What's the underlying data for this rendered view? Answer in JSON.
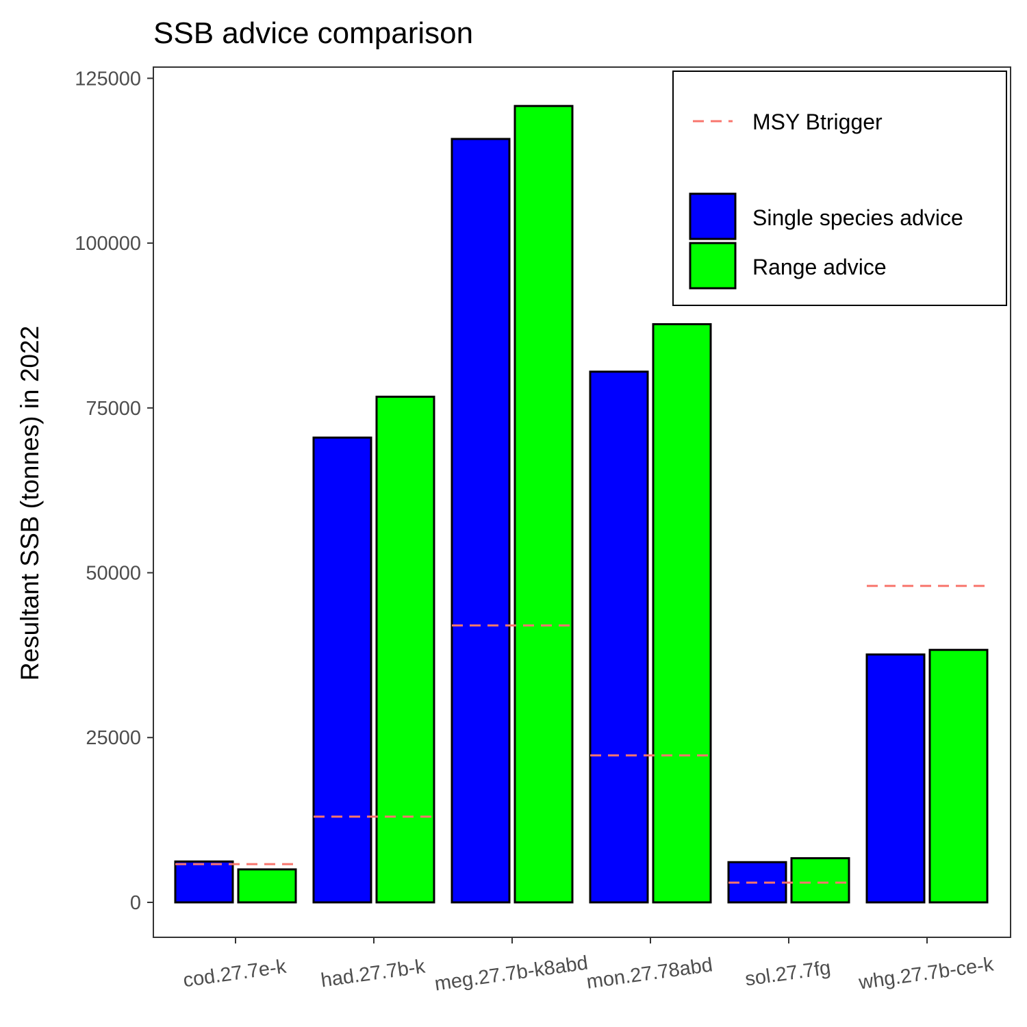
{
  "chart_data": {
    "type": "bar",
    "title": "SSB advice comparison",
    "xlabel": "",
    "ylabel": "Resultant SSB (tonnes) in 2022",
    "ylim": [
      -5300,
      126700
    ],
    "yticks": [
      0,
      25000,
      50000,
      75000,
      100000,
      125000
    ],
    "grid": false,
    "legend_position": "top-right",
    "categories": [
      "cod.27.7e-k",
      "had.27.7b-k",
      "meg.27.7b-k8abd",
      "mon.27.78abd",
      "sol.27.7fg",
      "whg.27.7b-ce-k"
    ],
    "series": [
      {
        "name": "Single species advice",
        "color": "#0000ff",
        "values": [
          6200,
          70500,
          115800,
          80500,
          6100,
          37600
        ]
      },
      {
        "name": "Range advice",
        "color": "#00ff00",
        "values": [
          5000,
          76700,
          120800,
          87700,
          6700,
          38300
        ]
      }
    ],
    "reference_lines": {
      "name": "MSY Btrigger",
      "color": "#f8766d",
      "style": "dashed",
      "values": [
        5800,
        13000,
        42000,
        22300,
        3000,
        48000
      ]
    }
  }
}
